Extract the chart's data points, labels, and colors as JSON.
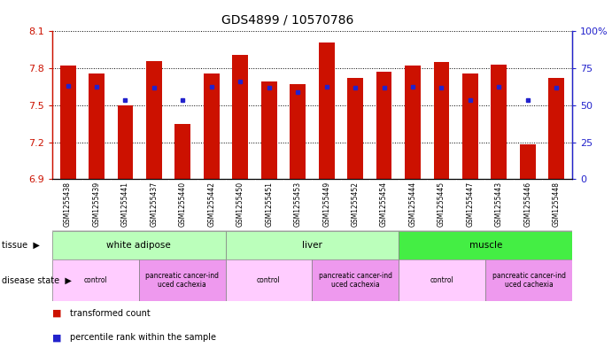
{
  "title": "GDS4899 / 10570786",
  "samples": [
    "GSM1255438",
    "GSM1255439",
    "GSM1255441",
    "GSM1255437",
    "GSM1255440",
    "GSM1255442",
    "GSM1255450",
    "GSM1255451",
    "GSM1255453",
    "GSM1255449",
    "GSM1255452",
    "GSM1255454",
    "GSM1255444",
    "GSM1255445",
    "GSM1255447",
    "GSM1255443",
    "GSM1255446",
    "GSM1255448"
  ],
  "bar_values": [
    7.82,
    7.76,
    7.5,
    7.86,
    7.35,
    7.76,
    7.91,
    7.69,
    7.67,
    8.01,
    7.72,
    7.77,
    7.82,
    7.85,
    7.76,
    7.83,
    7.18,
    7.72
  ],
  "percentile_values": [
    7.66,
    7.65,
    7.54,
    7.64,
    7.54,
    7.65,
    7.69,
    7.64,
    7.61,
    7.65,
    7.64,
    7.64,
    7.65,
    7.64,
    7.54,
    7.65,
    7.54,
    7.64
  ],
  "ymin": 6.9,
  "ymax": 8.1,
  "y_ticks": [
    6.9,
    7.2,
    7.5,
    7.8,
    8.1
  ],
  "right_yticks": [
    0,
    25,
    50,
    75,
    100
  ],
  "bar_color": "#cc1100",
  "percentile_color": "#2222cc",
  "tissue_groups": [
    {
      "label": "white adipose",
      "start": 0,
      "end": 6,
      "color": "#bbffbb"
    },
    {
      "label": "liver",
      "start": 6,
      "end": 12,
      "color": "#bbffbb"
    },
    {
      "label": "muscle",
      "start": 12,
      "end": 18,
      "color": "#44ee44"
    }
  ],
  "disease_groups": [
    {
      "label": "control",
      "start": 0,
      "end": 3,
      "color": "#ffccff"
    },
    {
      "label": "pancreatic cancer-ind\nuced cachexia",
      "start": 3,
      "end": 6,
      "color": "#ee99ee"
    },
    {
      "label": "control",
      "start": 6,
      "end": 9,
      "color": "#ffccff"
    },
    {
      "label": "pancreatic cancer-ind\nuced cachexia",
      "start": 9,
      "end": 12,
      "color": "#ee99ee"
    },
    {
      "label": "control",
      "start": 12,
      "end": 15,
      "color": "#ffccff"
    },
    {
      "label": "pancreatic cancer-ind\nuced cachexia",
      "start": 15,
      "end": 18,
      "color": "#ee99ee"
    }
  ],
  "legend_items": [
    {
      "color": "#cc1100",
      "label": "transformed count"
    },
    {
      "color": "#2222cc",
      "label": "percentile rank within the sample"
    }
  ],
  "xticklabel_bg": "#dddddd"
}
